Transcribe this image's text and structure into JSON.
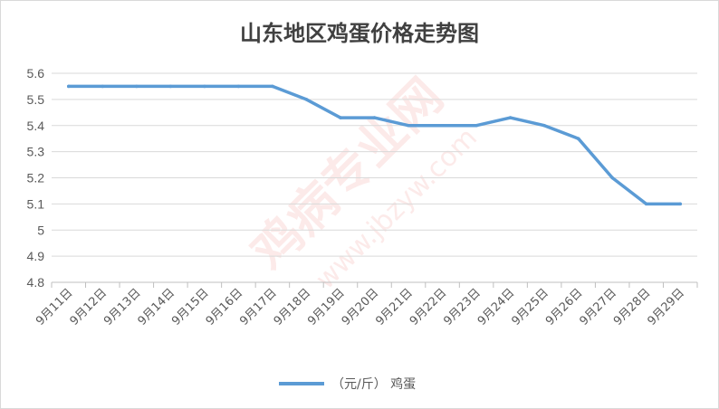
{
  "chart_data": {
    "type": "line",
    "title": "山东地区鸡蛋价格走势图",
    "categories": [
      "9月11日",
      "9月12日",
      "9月13日",
      "9月14日",
      "9月15日",
      "9月16日",
      "9月17日",
      "9月18日",
      "9月19日",
      "9月20日",
      "9月21日",
      "9月22日",
      "9月23日",
      "9月24日",
      "9月25日",
      "9月26日",
      "9月27日",
      "9月28日",
      "9月29日"
    ],
    "series": [
      {
        "name": "（元/斤） 鸡蛋",
        "values": [
          5.55,
          5.55,
          5.55,
          5.55,
          5.55,
          5.55,
          5.55,
          5.5,
          5.43,
          5.43,
          5.4,
          5.4,
          5.4,
          5.43,
          5.4,
          5.35,
          5.2,
          5.1,
          5.1
        ]
      }
    ],
    "ylim": [
      4.8,
      5.6
    ],
    "yticks": [
      "4.8",
      "4.9",
      "5",
      "5.1",
      "5.2",
      "5.3",
      "5.4",
      "5.5",
      "5.6"
    ],
    "xlabel": "",
    "ylabel": "",
    "grid": true,
    "legend_position": "bottom",
    "colors": {
      "line": "#5b9bd5",
      "grid": "#d9d9d9",
      "axis": "#bfbfbf",
      "text": "#595959"
    }
  },
  "watermark": {
    "text": "鸡病专业网",
    "url": "www.jbzyw.com"
  }
}
